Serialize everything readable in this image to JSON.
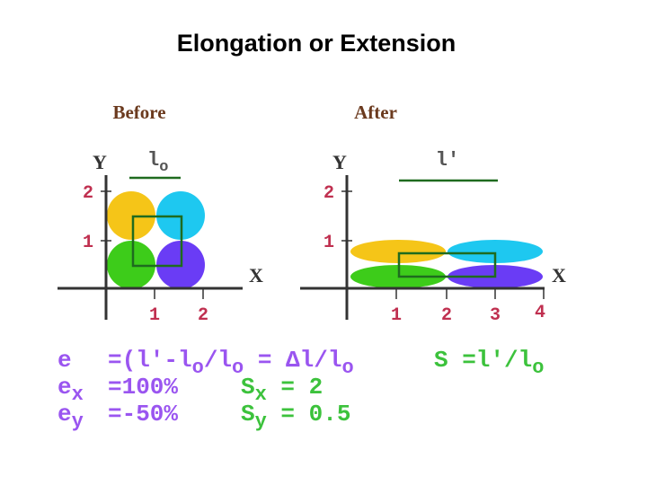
{
  "header": {
    "title": "Elongation or Extension"
  },
  "panels": [
    {
      "title": "Before",
      "y_axis": "Y",
      "x_axis": "X",
      "yticks": [
        "1",
        "2"
      ],
      "xticks": [
        "1",
        "2"
      ],
      "length_label": "l",
      "length_sub": "o"
    },
    {
      "title": "After",
      "y_axis": "Y",
      "x_axis": "X",
      "yticks": [
        "1",
        "2"
      ],
      "xticks": [
        "1",
        "2",
        "3",
        "4"
      ],
      "length_label": "l'"
    }
  ],
  "equations": [
    [
      [
        "e"
      ],
      [
        "=(l'-l",
        "o",
        "/l",
        "o",
        " = Δl/l",
        "o"
      ],
      [
        "S =l'/l",
        "o"
      ]
    ],
    [
      [
        "e",
        "x"
      ],
      [
        "=100%"
      ],
      [
        "S",
        "x",
        " = 2"
      ]
    ],
    [
      [
        "e",
        "y"
      ],
      [
        "=-50%"
      ],
      [
        "S",
        "y",
        " = 0.5"
      ]
    ]
  ]
}
